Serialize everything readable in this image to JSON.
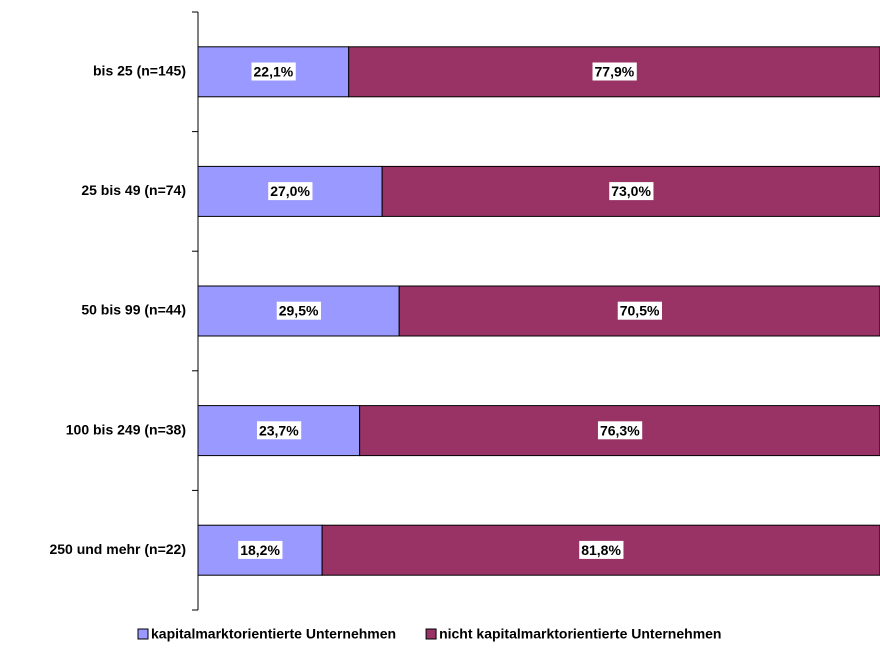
{
  "chart_data": {
    "type": "bar",
    "orientation": "horizontal",
    "stacked": true,
    "categories": [
      "bis 25 (n=145)",
      "25 bis 49 (n=74)",
      "50 bis 99 (n=44)",
      "100 bis 249 (n=38)",
      "250 und mehr (n=22)"
    ],
    "series": [
      {
        "name": "kapitalmarktorientierte Unternehmen",
        "color": "#9999ff",
        "values": [
          22.1,
          27.0,
          29.5,
          23.7,
          18.2
        ],
        "value_labels": [
          "22,1%",
          "27,0%",
          "29,5%",
          "23,7%",
          "18,2%"
        ]
      },
      {
        "name": "nicht kapitalmarktorientierte Unternehmen",
        "color": "#993366",
        "values": [
          77.9,
          73.0,
          70.5,
          76.3,
          81.8
        ],
        "value_labels": [
          "77,9%",
          "73,0%",
          "70,5%",
          "76,3%",
          "81,8%"
        ]
      }
    ],
    "xlim": [
      0,
      100
    ],
    "legend": "bottom"
  }
}
